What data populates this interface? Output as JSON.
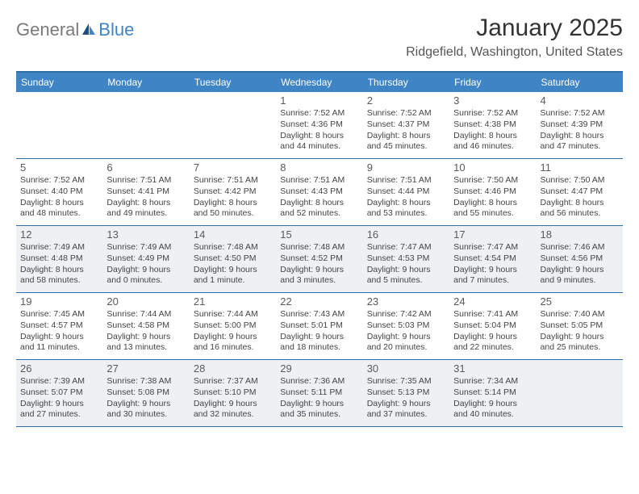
{
  "brand": {
    "text1": "General",
    "text2": "Blue"
  },
  "title": "January 2025",
  "location": "Ridgefield, Washington, United States",
  "colors": {
    "header_bg": "#3f85c6",
    "header_text": "#ffffff",
    "rule": "#2f6fa8",
    "shade": "#eef1f3",
    "body_text": "#444444",
    "daynum": "#5a5a5a"
  },
  "weekdays": [
    "Sunday",
    "Monday",
    "Tuesday",
    "Wednesday",
    "Thursday",
    "Friday",
    "Saturday"
  ],
  "shaded_weeks": [
    2,
    4
  ],
  "weeks": [
    [
      null,
      null,
      null,
      {
        "n": "1",
        "sr": "7:52 AM",
        "ss": "4:36 PM",
        "dl": "8 hours and 44 minutes."
      },
      {
        "n": "2",
        "sr": "7:52 AM",
        "ss": "4:37 PM",
        "dl": "8 hours and 45 minutes."
      },
      {
        "n": "3",
        "sr": "7:52 AM",
        "ss": "4:38 PM",
        "dl": "8 hours and 46 minutes."
      },
      {
        "n": "4",
        "sr": "7:52 AM",
        "ss": "4:39 PM",
        "dl": "8 hours and 47 minutes."
      }
    ],
    [
      {
        "n": "5",
        "sr": "7:52 AM",
        "ss": "4:40 PM",
        "dl": "8 hours and 48 minutes."
      },
      {
        "n": "6",
        "sr": "7:51 AM",
        "ss": "4:41 PM",
        "dl": "8 hours and 49 minutes."
      },
      {
        "n": "7",
        "sr": "7:51 AM",
        "ss": "4:42 PM",
        "dl": "8 hours and 50 minutes."
      },
      {
        "n": "8",
        "sr": "7:51 AM",
        "ss": "4:43 PM",
        "dl": "8 hours and 52 minutes."
      },
      {
        "n": "9",
        "sr": "7:51 AM",
        "ss": "4:44 PM",
        "dl": "8 hours and 53 minutes."
      },
      {
        "n": "10",
        "sr": "7:50 AM",
        "ss": "4:46 PM",
        "dl": "8 hours and 55 minutes."
      },
      {
        "n": "11",
        "sr": "7:50 AM",
        "ss": "4:47 PM",
        "dl": "8 hours and 56 minutes."
      }
    ],
    [
      {
        "n": "12",
        "sr": "7:49 AM",
        "ss": "4:48 PM",
        "dl": "8 hours and 58 minutes."
      },
      {
        "n": "13",
        "sr": "7:49 AM",
        "ss": "4:49 PM",
        "dl": "9 hours and 0 minutes."
      },
      {
        "n": "14",
        "sr": "7:48 AM",
        "ss": "4:50 PM",
        "dl": "9 hours and 1 minute."
      },
      {
        "n": "15",
        "sr": "7:48 AM",
        "ss": "4:52 PM",
        "dl": "9 hours and 3 minutes."
      },
      {
        "n": "16",
        "sr": "7:47 AM",
        "ss": "4:53 PM",
        "dl": "9 hours and 5 minutes."
      },
      {
        "n": "17",
        "sr": "7:47 AM",
        "ss": "4:54 PM",
        "dl": "9 hours and 7 minutes."
      },
      {
        "n": "18",
        "sr": "7:46 AM",
        "ss": "4:56 PM",
        "dl": "9 hours and 9 minutes."
      }
    ],
    [
      {
        "n": "19",
        "sr": "7:45 AM",
        "ss": "4:57 PM",
        "dl": "9 hours and 11 minutes."
      },
      {
        "n": "20",
        "sr": "7:44 AM",
        "ss": "4:58 PM",
        "dl": "9 hours and 13 minutes."
      },
      {
        "n": "21",
        "sr": "7:44 AM",
        "ss": "5:00 PM",
        "dl": "9 hours and 16 minutes."
      },
      {
        "n": "22",
        "sr": "7:43 AM",
        "ss": "5:01 PM",
        "dl": "9 hours and 18 minutes."
      },
      {
        "n": "23",
        "sr": "7:42 AM",
        "ss": "5:03 PM",
        "dl": "9 hours and 20 minutes."
      },
      {
        "n": "24",
        "sr": "7:41 AM",
        "ss": "5:04 PM",
        "dl": "9 hours and 22 minutes."
      },
      {
        "n": "25",
        "sr": "7:40 AM",
        "ss": "5:05 PM",
        "dl": "9 hours and 25 minutes."
      }
    ],
    [
      {
        "n": "26",
        "sr": "7:39 AM",
        "ss": "5:07 PM",
        "dl": "9 hours and 27 minutes."
      },
      {
        "n": "27",
        "sr": "7:38 AM",
        "ss": "5:08 PM",
        "dl": "9 hours and 30 minutes."
      },
      {
        "n": "28",
        "sr": "7:37 AM",
        "ss": "5:10 PM",
        "dl": "9 hours and 32 minutes."
      },
      {
        "n": "29",
        "sr": "7:36 AM",
        "ss": "5:11 PM",
        "dl": "9 hours and 35 minutes."
      },
      {
        "n": "30",
        "sr": "7:35 AM",
        "ss": "5:13 PM",
        "dl": "9 hours and 37 minutes."
      },
      {
        "n": "31",
        "sr": "7:34 AM",
        "ss": "5:14 PM",
        "dl": "9 hours and 40 minutes."
      },
      null
    ]
  ],
  "labels": {
    "sunrise": "Sunrise: ",
    "sunset": "Sunset: ",
    "daylight": "Daylight: "
  }
}
